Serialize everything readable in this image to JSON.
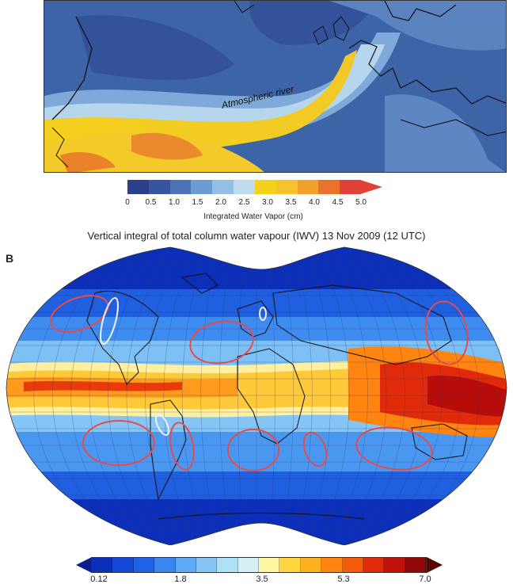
{
  "panel_a": {
    "annotation": "Atmospheric  river",
    "colorbar": {
      "ticks": [
        "0",
        "0.5",
        "1.0",
        "1.5",
        "2.0",
        "2.5",
        "3.0",
        "3.5",
        "4.0",
        "4.5",
        "5.0"
      ],
      "label": "Integrated Water Vapor (cm)",
      "colors": [
        "#2b3f8c",
        "#3654a0",
        "#4d74b8",
        "#6e9cd2",
        "#94c0e6",
        "#c0dcee",
        "#f2d21a",
        "#f7c22c",
        "#f2a02a",
        "#e8722a",
        "#e0423a"
      ]
    }
  },
  "panel_b": {
    "panel_label": "B",
    "title": "Vertical integral of total column water vapour (IWV) 13 Nov 2009 (12 UTC)",
    "colorbar": {
      "ticks": [
        "0.12",
        "1.8",
        "3.5",
        "5.3",
        "7.0"
      ],
      "colors": [
        "#0b2fb8",
        "#1447d6",
        "#1f63e8",
        "#3a86f0",
        "#5ea8f4",
        "#86c6f6",
        "#aee0f6",
        "#d4f0f4",
        "#fff6a0",
        "#ffd640",
        "#ffb020",
        "#ff8410",
        "#f45a0a",
        "#e02a0a",
        "#c0100a",
        "#900808"
      ]
    }
  }
}
